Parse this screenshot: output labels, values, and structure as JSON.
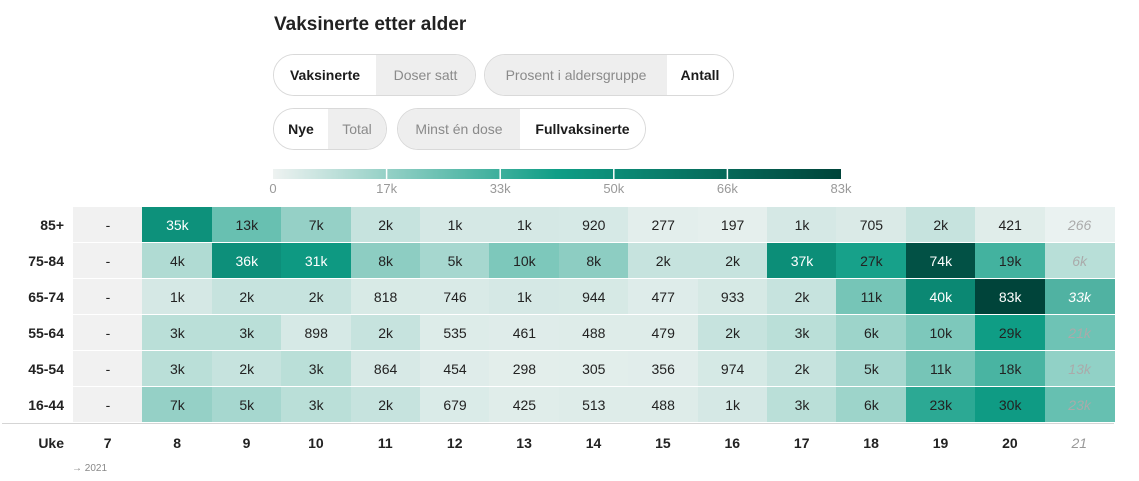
{
  "title": "Vaksinerte etter alder",
  "toggles": [
    {
      "options": [
        "Vaksinerte",
        "Doser satt"
      ],
      "active": 0
    },
    {
      "options": [
        "Prosent i aldersgruppe",
        "Antall"
      ],
      "active": 1
    },
    {
      "options": [
        "Nye",
        "Total"
      ],
      "active": 0
    },
    {
      "options": [
        "Minst én dose",
        "Fullvaksinerte"
      ],
      "active": 1
    }
  ],
  "colors": {
    "scale_low": "#eef2f1",
    "scale_high": "#00443a",
    "scale_mid": "#0f9e86",
    "empty_cell": "#f1f1f1"
  },
  "chart_data": {
    "type": "heatmap",
    "title": "Vaksinerte etter alder",
    "xlabel": "Uke",
    "x_note": "→ 2021",
    "colorbar": {
      "min": 0,
      "max": 83000,
      "tick_labels": [
        "0",
        "17k",
        "33k",
        "50k",
        "66k",
        "83k"
      ],
      "tick_values": [
        0,
        16600,
        33200,
        49800,
        66400,
        83000
      ]
    },
    "weeks": [
      "7",
      "8",
      "9",
      "10",
      "11",
      "12",
      "13",
      "14",
      "15",
      "16",
      "17",
      "18",
      "19",
      "20",
      "21"
    ],
    "predicted_weeks": [
      "21"
    ],
    "rows": [
      {
        "age": "85+",
        "labels": [
          "-",
          "35k",
          "13k",
          "7k",
          "2k",
          "1k",
          "1k",
          "920",
          "277",
          "197",
          "1k",
          "705",
          "2k",
          "421",
          "266"
        ],
        "values": [
          null,
          35000,
          13000,
          7000,
          2000,
          1000,
          1000,
          920,
          277,
          197,
          1000,
          705,
          2000,
          421,
          266
        ]
      },
      {
        "age": "75-84",
        "labels": [
          "-",
          "4k",
          "36k",
          "31k",
          "8k",
          "5k",
          "10k",
          "8k",
          "2k",
          "2k",
          "37k",
          "27k",
          "74k",
          "19k",
          "6k"
        ],
        "values": [
          null,
          4000,
          36000,
          31000,
          8000,
          5000,
          10000,
          8000,
          2000,
          2000,
          37000,
          27000,
          74000,
          19000,
          6000
        ]
      },
      {
        "age": "65-74",
        "labels": [
          "-",
          "1k",
          "2k",
          "2k",
          "818",
          "746",
          "1k",
          "944",
          "477",
          "933",
          "2k",
          "11k",
          "40k",
          "83k",
          "33k"
        ],
        "values": [
          null,
          1000,
          2000,
          2000,
          818,
          746,
          1000,
          944,
          477,
          933,
          2000,
          11000,
          40000,
          83000,
          33000
        ]
      },
      {
        "age": "55-64",
        "labels": [
          "-",
          "3k",
          "3k",
          "898",
          "2k",
          "535",
          "461",
          "488",
          "479",
          "2k",
          "3k",
          "6k",
          "10k",
          "29k",
          "21k"
        ],
        "values": [
          null,
          3000,
          3000,
          898,
          2000,
          535,
          461,
          488,
          479,
          2000,
          3000,
          6000,
          10000,
          29000,
          21000
        ]
      },
      {
        "age": "45-54",
        "labels": [
          "-",
          "3k",
          "2k",
          "3k",
          "864",
          "454",
          "298",
          "305",
          "356",
          "974",
          "2k",
          "5k",
          "11k",
          "18k",
          "13k"
        ],
        "values": [
          null,
          3000,
          2000,
          3000,
          864,
          454,
          298,
          305,
          356,
          974,
          2000,
          5000,
          11000,
          18000,
          13000
        ]
      },
      {
        "age": "16-44",
        "labels": [
          "-",
          "7k",
          "5k",
          "3k",
          "2k",
          "679",
          "425",
          "513",
          "488",
          "1k",
          "3k",
          "6k",
          "23k",
          "30k",
          "23k"
        ],
        "values": [
          null,
          7000,
          5000,
          3000,
          2000,
          679,
          425,
          513,
          488,
          1000,
          3000,
          6000,
          23000,
          30000,
          23000
        ]
      }
    ]
  }
}
